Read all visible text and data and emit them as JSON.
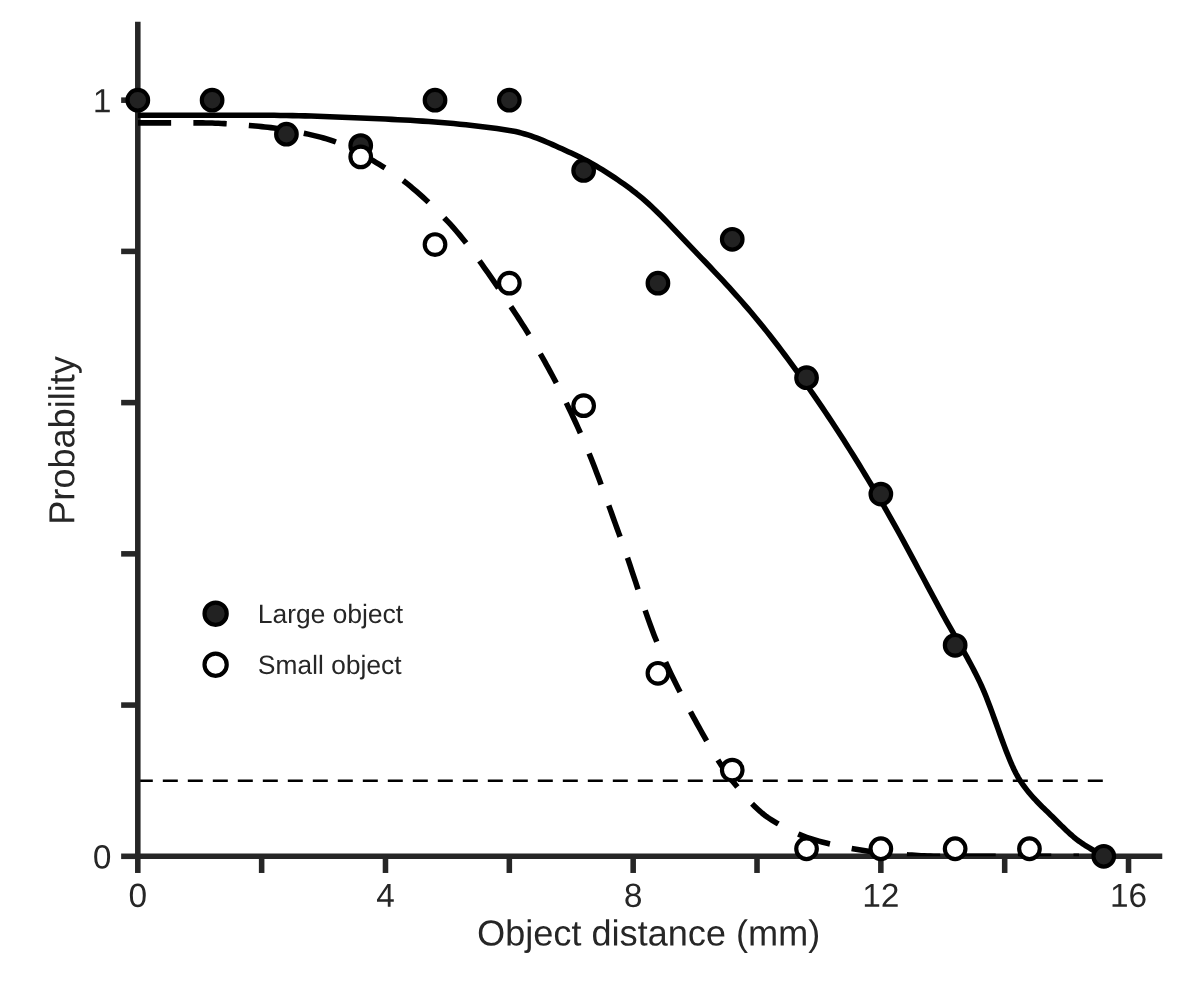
{
  "chart_data": {
    "type": "scatter",
    "xlabel": "Object distance (mm)",
    "ylabel": "Probability",
    "xlim": [
      0,
      16.5
    ],
    "ylim": [
      0,
      1.1
    ],
    "xticks": [
      0,
      {
        "value": 2,
        "label": null
      },
      4,
      {
        "value": 6,
        "label": null
      },
      8,
      {
        "value": 10,
        "label": null
      },
      12,
      {
        "value": 14,
        "label": null
      },
      16
    ],
    "yticks": [
      0,
      {
        "value": 0.2,
        "label": null
      },
      {
        "value": 0.4,
        "label": null
      },
      {
        "value": 0.6,
        "label": null
      },
      {
        "value": 0.8,
        "label": null
      },
      1
    ],
    "grid": false,
    "legend": "bottom left",
    "ref_lines": [
      {
        "axis": "y",
        "value": 0.1,
        "line_style": "dashed",
        "color": "#000000"
      }
    ],
    "series": [
      {
        "name": "Large object",
        "marker": "circle",
        "color": "#222222",
        "x": [
          0,
          1.2,
          2.4,
          3.6,
          4.8,
          6.0,
          7.2,
          8.4,
          9.6,
          10.8,
          12.0,
          13.2,
          15.6
        ],
        "values": [
          1.0,
          1.0,
          0.955,
          0.94,
          1.0,
          1.0,
          0.907,
          0.758,
          0.816,
          0.633,
          0.479,
          0.279,
          0.0
        ]
      },
      {
        "name": "Small object",
        "marker": "circle",
        "color": "#ffffff",
        "x": [
          3.6,
          4.8,
          6.0,
          7.2,
          8.4,
          9.6,
          10.8,
          12.0,
          13.2,
          14.4
        ],
        "values": [
          0.925,
          0.809,
          0.758,
          0.596,
          0.242,
          0.114,
          0.01,
          0.01,
          0.01,
          0.01
        ]
      },
      {
        "type": "line",
        "marker": "none",
        "line_style": "solid",
        "color": "#000000",
        "x": [
          0,
          2,
          4,
          6,
          7,
          8,
          9,
          10,
          11,
          12,
          13,
          13.6,
          14.25,
          14.8,
          15.2,
          15.6
        ],
        "values": [
          0.98,
          0.98,
          0.975,
          0.96,
          0.93,
          0.88,
          0.8,
          0.71,
          0.6,
          0.47,
          0.32,
          0.23,
          0.1,
          0.05,
          0.02,
          0.0
        ]
      },
      {
        "type": "line",
        "marker": "none",
        "line_style": "dashed",
        "color": "#000000",
        "x": [
          0,
          1,
          2,
          3,
          4,
          5,
          6,
          6.6,
          7.2,
          7.8,
          8.4,
          9,
          9.6,
          10.2,
          11,
          12,
          13,
          14.4,
          15.2
        ],
        "values": [
          0.97,
          0.97,
          0.965,
          0.95,
          0.91,
          0.84,
          0.73,
          0.65,
          0.55,
          0.42,
          0.28,
          0.18,
          0.1,
          0.05,
          0.02,
          0.005,
          0.0,
          0.0,
          0.0
        ]
      }
    ]
  }
}
